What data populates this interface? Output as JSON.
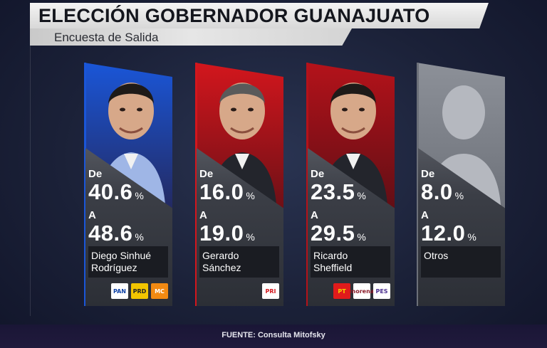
{
  "header": {
    "title": "ELECCIÓN GOBERNADOR GUANAJUATO",
    "subtitle": "Encuesta de Salida"
  },
  "labels": {
    "from": "De",
    "to": "A",
    "percent": "%"
  },
  "candidates": [
    {
      "name": "Diego Sinhué\nRodríguez",
      "from": "40.6",
      "to": "48.6",
      "accent": "#1a56d8",
      "photo": "candidate-photo",
      "parties": [
        {
          "icon": "pan-logo-icon",
          "text": "PAN",
          "bg": "#ffffff",
          "fg": "#0b3fa5"
        },
        {
          "icon": "prd-logo-icon",
          "text": "PRD",
          "bg": "#f2c500",
          "fg": "#222222"
        },
        {
          "icon": "mc-logo-icon",
          "text": "MC",
          "bg": "#f28a12",
          "fg": "#ffffff"
        }
      ]
    },
    {
      "name": "Gerardo\nSánchez",
      "from": "16.0",
      "to": "19.0",
      "accent": "#d3161d",
      "photo": "candidate-photo",
      "parties": [
        {
          "icon": "pri-logo-icon",
          "text": "PRI",
          "bg": "#ffffff",
          "fg": "#d3161d"
        }
      ]
    },
    {
      "name": "Ricardo\nSheffield",
      "from": "23.5",
      "to": "29.5",
      "accent": "#b4121a",
      "photo": "candidate-photo",
      "parties": [
        {
          "icon": "pt-logo-icon",
          "text": "PT",
          "bg": "#e01b1b",
          "fg": "#f5d200"
        },
        {
          "icon": "morena-logo-icon",
          "text": "morena",
          "bg": "#ffffff",
          "fg": "#8a1c2a"
        },
        {
          "icon": "pes-logo-icon",
          "text": "PES",
          "bg": "#ffffff",
          "fg": "#4a2f8f"
        }
      ]
    },
    {
      "name": "Otros",
      "from": "8.0",
      "to": "12.0",
      "accent": "#6c7079",
      "photo": "silhouette",
      "parties": []
    }
  ],
  "footer": {
    "source": "FUENTE: Consulta Mitofsky"
  }
}
